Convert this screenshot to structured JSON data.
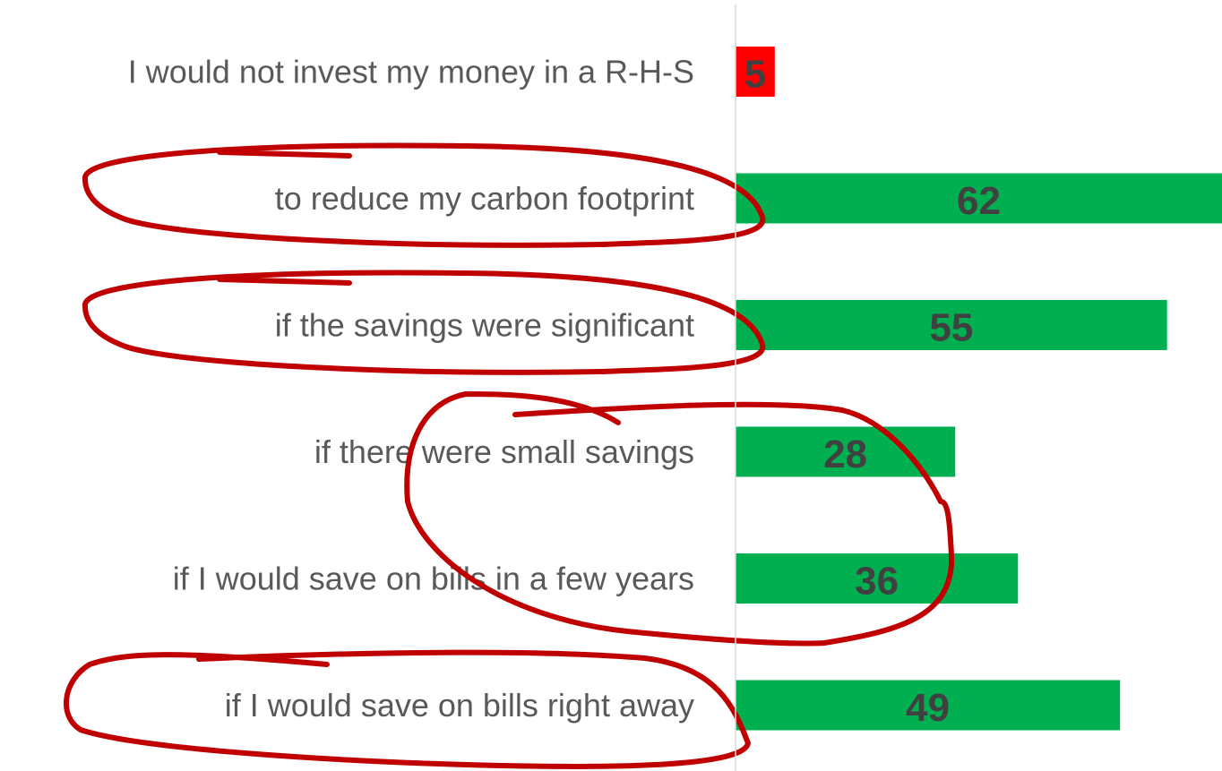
{
  "chart_data": {
    "type": "barh",
    "categories": [
      "I would not invest my money in a R-H-S",
      "to reduce my carbon footprint",
      "if the savings were significant",
      "if there were small savings",
      "if I would save on bills in a few years",
      "if I would save on bills right away"
    ],
    "values": [
      5,
      62,
      55,
      28,
      36,
      49
    ],
    "colors": [
      "#ff0000",
      "#00b050",
      "#00b050",
      "#00b050",
      "#00b050",
      "#00b050"
    ],
    "xlim": [
      0,
      62
    ]
  }
}
